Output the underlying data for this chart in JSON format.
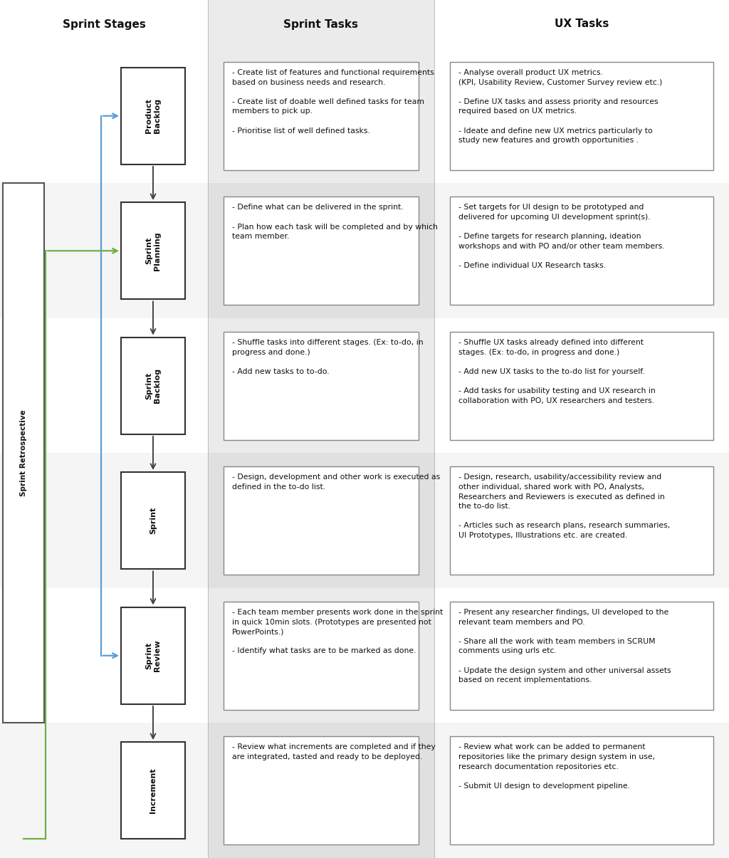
{
  "header_bg_col2": "#ebebeb",
  "row_bg_odd": "#f5f5f5",
  "row_bg_even": "#ffffff",
  "content_bg": "#ffffff",
  "box_edge": "#888888",
  "stage_box_edge": "#333333",
  "retro_box_edge": "#555555",
  "headers": [
    "Sprint Stages",
    "Sprint Tasks",
    "UX Tasks"
  ],
  "header_fontsize": 11,
  "stage_fontsize": 8,
  "task_fontsize": 7.8,
  "stages": [
    {
      "name": "Product\nBacklog",
      "sprint_tasks": "- Create list of features and functional requirements\nbased on business needs and research.\n\n- Create list of doable well defined tasks for team\nmembers to pick up.\n\n- Prioritise list of well defined tasks.",
      "ux_tasks": "- Analyse overall product UX metrics.\n(KPI, Usability Review, Customer Survey review etc.)\n\n- Define UX tasks and assess priority and resources\nrequired based on UX metrics.\n\n- Ideate and define new UX metrics particularly to\nstudy new features and growth opportunities ."
    },
    {
      "name": "Sprint\nPlanning",
      "sprint_tasks": "- Define what can be delivered in the sprint.\n\n- Plan how each task will be completed and by which\nteam member.",
      "ux_tasks": "- Set targets for UI design to be prototyped and\ndelivered for upcoming UI development sprint(s).\n\n- Define targets for research planning, ideation\nworkshops and with PO and/or other team members.\n\n- Define individual UX Research tasks."
    },
    {
      "name": "Sprint\nBacklog",
      "sprint_tasks": "- Shuffle tasks into different stages. (Ex: to-do, in\nprogress and done.)\n\n- Add new tasks to to-do.",
      "ux_tasks": "- Shuffle UX tasks already defined into different\nstages. (Ex: to-do, in progress and done.)\n\n- Add new UX tasks to the to-do list for yourself.\n\n- Add tasks for usability testing and UX research in\ncollaboration with PO, UX researchers and testers."
    },
    {
      "name": "Sprint",
      "sprint_tasks": "- Design, development and other work is executed as\ndefined in the to-do list.",
      "ux_tasks": "- Design, research, usability/accessibility review and\nother individual, shared work with PO, Analysts,\nResearchers and Reviewers is executed as defined in\nthe to-do list.\n\n- Articles such as research plans, research summaries,\nUI Prototypes, Illustrations etc. are created."
    },
    {
      "name": "Sprint\nReview",
      "sprint_tasks": "- Each team member presents work done in the sprint\nin quick 10min slots. (Prototypes are presented not\nPowerPoints.)\n\n- Identify what tasks are to be marked as done.",
      "ux_tasks": "- Present any researcher findings, UI developed to the\nrelevant team members and PO.\n\n- Share all the work with team members in SCRUM\ncomments using urls etc.\n\n- Update the design system and other universal assets\nbased on recent implementations."
    },
    {
      "name": "Increment",
      "sprint_tasks": "- Review what increments are completed and if they\nare integrated, tasted and ready to be deployed.",
      "ux_tasks": "- Review what work can be added to permanent\nrepositories like the primary design system in use,\nresearch documentation repositories etc.\n\n- Submit UI design to development pipeline."
    }
  ],
  "retro_label": "Sprint Retrospective",
  "blue_color": "#5b9bd5",
  "green_color": "#70ad47",
  "arrow_color": "#444444"
}
